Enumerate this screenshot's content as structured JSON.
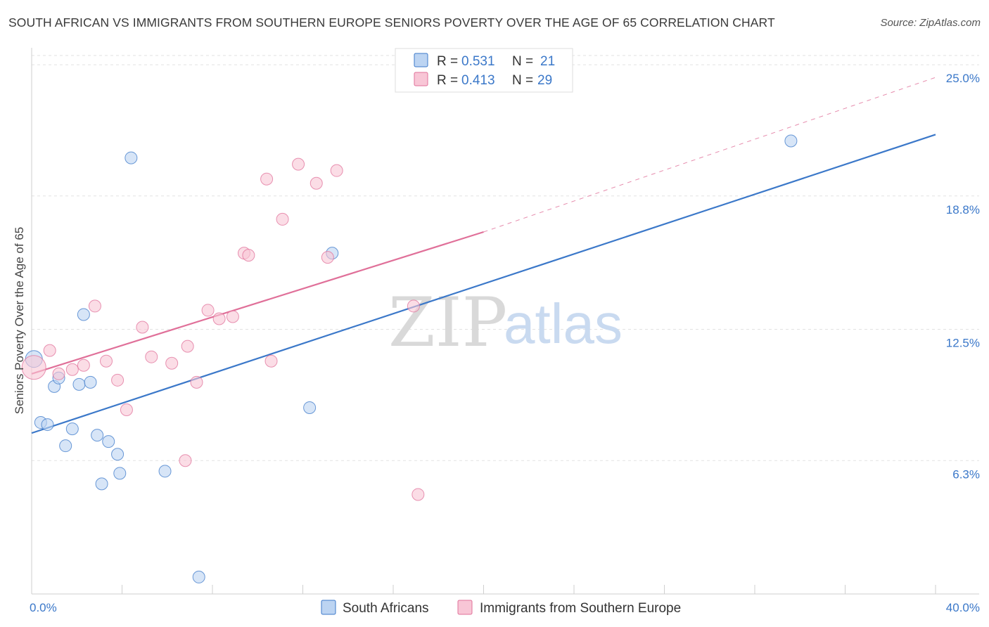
{
  "header": {
    "title": "SOUTH AFRICAN VS IMMIGRANTS FROM SOUTHERN EUROPE SENIORS POVERTY OVER THE AGE OF 65 CORRELATION CHART",
    "source": "Source: ZipAtlas.com"
  },
  "watermark": {
    "zip": "ZIP",
    "atlas": "atlas"
  },
  "colors": {
    "blue": "#3b78c9",
    "blue_fill": "#bcd4f2",
    "pink": "#e07099",
    "pink_fill": "#f8c6d6",
    "grid": "#e2e2e2"
  },
  "legend_top": {
    "rows": [
      {
        "r_label": "R = ",
        "r_value": "0.531",
        "n_label": "N = ",
        "n_value": "21"
      },
      {
        "r_label": "R = ",
        "r_value": "0.413",
        "n_label": "N = ",
        "n_value": "29"
      }
    ]
  },
  "chart_data": {
    "type": "scatter",
    "title": "SOUTH AFRICAN VS IMMIGRANTS FROM SOUTHERN EUROPE SENIORS POVERTY OVER THE AGE OF 65 CORRELATION CHART",
    "xlabel": "",
    "ylabel": "Seniors Poverty Over the Age of 65",
    "xlim": [
      0,
      40
    ],
    "ylim": [
      0,
      25.6
    ],
    "x_tick_labels": [
      {
        "value": 0,
        "label": "0.0%"
      },
      {
        "value": 40,
        "label": "40.0%"
      }
    ],
    "y_tick_labels": [
      {
        "value": 6.3,
        "label": "6.3%"
      },
      {
        "value": 12.5,
        "label": "12.5%"
      },
      {
        "value": 18.8,
        "label": "18.8%"
      },
      {
        "value": 25.0,
        "label": "25.0%"
      }
    ],
    "grid": true,
    "legend_placement": "top-center",
    "series": [
      {
        "name": "South Africans",
        "color": "#3b78c9",
        "points": [
          [
            0.1,
            11.1
          ],
          [
            0.4,
            8.1
          ],
          [
            0.7,
            8.0
          ],
          [
            1.0,
            9.8
          ],
          [
            1.2,
            10.2
          ],
          [
            1.5,
            7.0
          ],
          [
            1.8,
            7.8
          ],
          [
            2.1,
            9.9
          ],
          [
            2.3,
            13.2
          ],
          [
            2.6,
            10.0
          ],
          [
            2.9,
            7.5
          ],
          [
            3.1,
            5.2
          ],
          [
            3.4,
            7.2
          ],
          [
            3.8,
            6.6
          ],
          [
            3.9,
            5.7
          ],
          [
            4.4,
            20.6
          ],
          [
            5.9,
            5.8
          ],
          [
            7.4,
            0.8
          ],
          [
            12.3,
            8.8
          ],
          [
            13.3,
            16.1
          ],
          [
            33.6,
            21.4
          ]
        ],
        "trend": {
          "x": [
            0,
            40
          ],
          "y": [
            7.6,
            21.7
          ],
          "dashed_extension": false
        }
      },
      {
        "name": "Immigrants from Southern Europe",
        "color": "#e07099",
        "points": [
          [
            0.1,
            10.7
          ],
          [
            0.8,
            11.5
          ],
          [
            1.2,
            10.4
          ],
          [
            1.8,
            10.6
          ],
          [
            2.3,
            10.8
          ],
          [
            2.8,
            13.6
          ],
          [
            3.3,
            11.0
          ],
          [
            3.8,
            10.1
          ],
          [
            4.2,
            8.7
          ],
          [
            4.9,
            12.6
          ],
          [
            5.3,
            11.2
          ],
          [
            6.2,
            10.9
          ],
          [
            6.8,
            6.3
          ],
          [
            6.9,
            11.7
          ],
          [
            7.3,
            10.0
          ],
          [
            7.8,
            13.4
          ],
          [
            8.3,
            13.0
          ],
          [
            8.9,
            13.1
          ],
          [
            9.4,
            16.1
          ],
          [
            9.6,
            16.0
          ],
          [
            10.4,
            19.6
          ],
          [
            10.6,
            11.0
          ],
          [
            11.1,
            17.7
          ],
          [
            11.8,
            20.3
          ],
          [
            12.6,
            19.4
          ],
          [
            13.1,
            15.9
          ],
          [
            13.5,
            20.0
          ],
          [
            16.9,
            13.6
          ],
          [
            17.1,
            4.7
          ]
        ],
        "trend": {
          "x": [
            0,
            20
          ],
          "y": [
            10.4,
            17.1
          ],
          "dashed_extension": {
            "x": [
              20,
              40
            ],
            "y": [
              17.1,
              24.4
            ]
          }
        }
      }
    ]
  },
  "legend_bottom": {
    "items": [
      {
        "label": "South Africans"
      },
      {
        "label": "Immigrants from Southern Europe"
      }
    ]
  }
}
